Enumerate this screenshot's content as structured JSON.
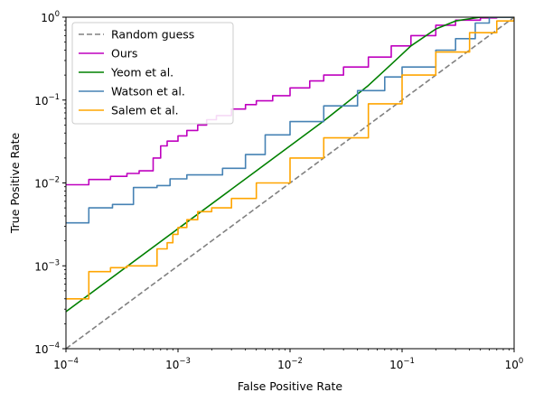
{
  "chart_data": {
    "type": "line",
    "xlabel": "False Positive Rate",
    "ylabel": "True Positive Rate",
    "xscale": "log",
    "yscale": "log",
    "xlim": [
      0.0001,
      1
    ],
    "ylim": [
      0.0001,
      1
    ],
    "grid": false,
    "legend_position": "top-left",
    "x_ticks": [
      {
        "value": 0.0001,
        "base": "10",
        "exp": "−4"
      },
      {
        "value": 0.001,
        "base": "10",
        "exp": "−3"
      },
      {
        "value": 0.01,
        "base": "10",
        "exp": "−2"
      },
      {
        "value": 0.1,
        "base": "10",
        "exp": "−1"
      },
      {
        "value": 1,
        "base": "10",
        "exp": "0"
      }
    ],
    "y_ticks": [
      {
        "value": 0.0001,
        "base": "10",
        "exp": "−4"
      },
      {
        "value": 0.001,
        "base": "10",
        "exp": "−3"
      },
      {
        "value": 0.01,
        "base": "10",
        "exp": "−2"
      },
      {
        "value": 0.1,
        "base": "10",
        "exp": "−1"
      },
      {
        "value": 1,
        "base": "10",
        "exp": "0"
      }
    ],
    "series": [
      {
        "name": "Random guess",
        "color": "#808080",
        "dashed": true,
        "step": false,
        "x": [
          0.0001,
          1
        ],
        "y": [
          0.0001,
          1
        ]
      },
      {
        "name": "Ours",
        "color": "#bf00bf",
        "dashed": false,
        "step": true,
        "x": [
          0.0001,
          0.00016,
          0.00025,
          0.00035,
          0.00045,
          0.0006,
          0.0007,
          0.0008,
          0.001,
          0.0012,
          0.0015,
          0.0018,
          0.0022,
          0.003,
          0.004,
          0.005,
          0.007,
          0.01,
          0.015,
          0.02,
          0.03,
          0.05,
          0.08,
          0.12,
          0.2,
          0.3,
          0.5,
          0.7,
          1
        ],
        "y": [
          0.0095,
          0.011,
          0.012,
          0.013,
          0.014,
          0.02,
          0.028,
          0.032,
          0.037,
          0.043,
          0.05,
          0.058,
          0.065,
          0.078,
          0.088,
          0.098,
          0.113,
          0.14,
          0.17,
          0.2,
          0.25,
          0.33,
          0.45,
          0.6,
          0.8,
          0.92,
          0.98,
          1,
          1
        ]
      },
      {
        "name": "Yeom et al.",
        "color": "#008000",
        "dashed": false,
        "step": false,
        "x": [
          0.0001,
          0.001,
          0.005,
          0.01,
          0.02,
          0.05,
          0.08,
          0.12,
          0.2,
          0.3,
          0.5,
          1
        ],
        "y": [
          0.00028,
          0.0028,
          0.014,
          0.028,
          0.056,
          0.15,
          0.27,
          0.45,
          0.72,
          0.9,
          1,
          1
        ]
      },
      {
        "name": "Watson et al.",
        "color": "#4682b4",
        "dashed": false,
        "step": true,
        "x": [
          0.0001,
          0.00016,
          0.00026,
          0.0004,
          0.00065,
          0.00085,
          0.0012,
          0.0025,
          0.004,
          0.006,
          0.01,
          0.02,
          0.04,
          0.07,
          0.1,
          0.2,
          0.3,
          0.45,
          0.6,
          1
        ],
        "y": [
          0.0033,
          0.005,
          0.0055,
          0.0088,
          0.0093,
          0.0112,
          0.0125,
          0.015,
          0.022,
          0.038,
          0.055,
          0.085,
          0.13,
          0.19,
          0.25,
          0.4,
          0.55,
          0.85,
          1,
          1
        ]
      },
      {
        "name": "Salem et al.",
        "color": "#ffa500",
        "dashed": false,
        "step": true,
        "x": [
          0.0001,
          0.00016,
          0.00025,
          0.00035,
          0.00065,
          0.0008,
          0.0009,
          0.001,
          0.0012,
          0.0015,
          0.002,
          0.003,
          0.005,
          0.01,
          0.02,
          0.05,
          0.1,
          0.2,
          0.4,
          0.7,
          1
        ],
        "y": [
          0.0004,
          0.00085,
          0.00095,
          0.001,
          0.0016,
          0.0019,
          0.0024,
          0.0029,
          0.0036,
          0.0045,
          0.005,
          0.0065,
          0.01,
          0.02,
          0.035,
          0.09,
          0.2,
          0.38,
          0.65,
          0.9,
          1
        ]
      }
    ]
  }
}
